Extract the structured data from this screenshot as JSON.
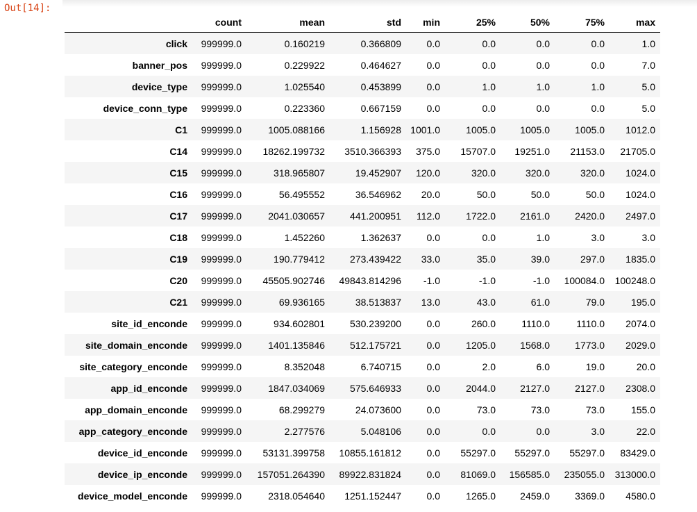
{
  "prompt": "Out[14]:",
  "table": {
    "columns": [
      "count",
      "mean",
      "std",
      "min",
      "25%",
      "50%",
      "75%",
      "max"
    ],
    "rows": [
      {
        "index": "click",
        "values": [
          "999999.0",
          "0.160219",
          "0.366809",
          "0.0",
          "0.0",
          "0.0",
          "0.0",
          "1.0"
        ]
      },
      {
        "index": "banner_pos",
        "values": [
          "999999.0",
          "0.229922",
          "0.464627",
          "0.0",
          "0.0",
          "0.0",
          "0.0",
          "7.0"
        ]
      },
      {
        "index": "device_type",
        "values": [
          "999999.0",
          "1.025540",
          "0.453899",
          "0.0",
          "1.0",
          "1.0",
          "1.0",
          "5.0"
        ]
      },
      {
        "index": "device_conn_type",
        "values": [
          "999999.0",
          "0.223360",
          "0.667159",
          "0.0",
          "0.0",
          "0.0",
          "0.0",
          "5.0"
        ]
      },
      {
        "index": "C1",
        "values": [
          "999999.0",
          "1005.088166",
          "1.156928",
          "1001.0",
          "1005.0",
          "1005.0",
          "1005.0",
          "1012.0"
        ]
      },
      {
        "index": "C14",
        "values": [
          "999999.0",
          "18262.199732",
          "3510.366393",
          "375.0",
          "15707.0",
          "19251.0",
          "21153.0",
          "21705.0"
        ]
      },
      {
        "index": "C15",
        "values": [
          "999999.0",
          "318.965807",
          "19.452907",
          "120.0",
          "320.0",
          "320.0",
          "320.0",
          "1024.0"
        ]
      },
      {
        "index": "C16",
        "values": [
          "999999.0",
          "56.495552",
          "36.546962",
          "20.0",
          "50.0",
          "50.0",
          "50.0",
          "1024.0"
        ]
      },
      {
        "index": "C17",
        "values": [
          "999999.0",
          "2041.030657",
          "441.200951",
          "112.0",
          "1722.0",
          "2161.0",
          "2420.0",
          "2497.0"
        ]
      },
      {
        "index": "C18",
        "values": [
          "999999.0",
          "1.452260",
          "1.362637",
          "0.0",
          "0.0",
          "1.0",
          "3.0",
          "3.0"
        ]
      },
      {
        "index": "C19",
        "values": [
          "999999.0",
          "190.779412",
          "273.439422",
          "33.0",
          "35.0",
          "39.0",
          "297.0",
          "1835.0"
        ]
      },
      {
        "index": "C20",
        "values": [
          "999999.0",
          "45505.902746",
          "49843.814296",
          "-1.0",
          "-1.0",
          "-1.0",
          "100084.0",
          "100248.0"
        ]
      },
      {
        "index": "C21",
        "values": [
          "999999.0",
          "69.936165",
          "38.513837",
          "13.0",
          "43.0",
          "61.0",
          "79.0",
          "195.0"
        ]
      },
      {
        "index": "site_id_enconde",
        "values": [
          "999999.0",
          "934.602801",
          "530.239200",
          "0.0",
          "260.0",
          "1110.0",
          "1110.0",
          "2074.0"
        ]
      },
      {
        "index": "site_domain_enconde",
        "values": [
          "999999.0",
          "1401.135846",
          "512.175721",
          "0.0",
          "1205.0",
          "1568.0",
          "1773.0",
          "2029.0"
        ]
      },
      {
        "index": "site_category_enconde",
        "values": [
          "999999.0",
          "8.352048",
          "6.740715",
          "0.0",
          "2.0",
          "6.0",
          "19.0",
          "20.0"
        ]
      },
      {
        "index": "app_id_enconde",
        "values": [
          "999999.0",
          "1847.034069",
          "575.646933",
          "0.0",
          "2044.0",
          "2127.0",
          "2127.0",
          "2308.0"
        ]
      },
      {
        "index": "app_domain_enconde",
        "values": [
          "999999.0",
          "68.299279",
          "24.073600",
          "0.0",
          "73.0",
          "73.0",
          "73.0",
          "155.0"
        ]
      },
      {
        "index": "app_category_enconde",
        "values": [
          "999999.0",
          "2.277576",
          "5.048106",
          "0.0",
          "0.0",
          "0.0",
          "3.0",
          "22.0"
        ]
      },
      {
        "index": "device_id_enconde",
        "values": [
          "999999.0",
          "53131.399758",
          "10855.161812",
          "0.0",
          "55297.0",
          "55297.0",
          "55297.0",
          "83429.0"
        ]
      },
      {
        "index": "device_ip_enconde",
        "values": [
          "999999.0",
          "157051.264390",
          "89922.831824",
          "0.0",
          "81069.0",
          "156585.0",
          "235055.0",
          "313000.0"
        ]
      },
      {
        "index": "device_model_enconde",
        "values": [
          "999999.0",
          "2318.054640",
          "1251.152447",
          "0.0",
          "1265.0",
          "2459.0",
          "3369.0",
          "4580.0"
        ]
      }
    ]
  }
}
